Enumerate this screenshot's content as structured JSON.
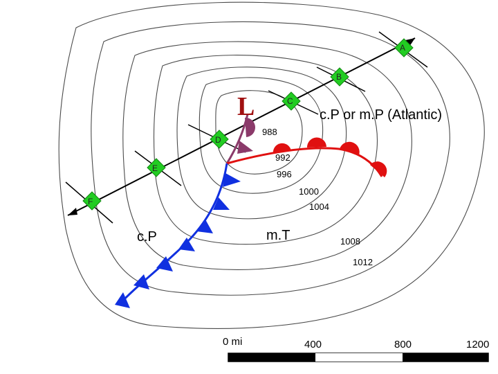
{
  "low_center": {
    "symbol": "L",
    "color": "#a01010"
  },
  "isobars": [
    {
      "label": "988"
    },
    {
      "label": "992"
    },
    {
      "label": "996"
    },
    {
      "label": "1000"
    },
    {
      "label": "1004"
    },
    {
      "label": "1008"
    },
    {
      "label": "1012"
    }
  ],
  "air_masses": {
    "atlantic": "c.P or m.P (Atlantic)",
    "cold_side": "c.P",
    "warm_side": "m.T"
  },
  "stations": [
    {
      "label": "A"
    },
    {
      "label": "B"
    },
    {
      "label": "C"
    },
    {
      "label": "D"
    },
    {
      "label": "E"
    },
    {
      "label": "F"
    }
  ],
  "fronts": {
    "warm_color": "#e01010",
    "cold_color": "#1030e0",
    "occluded_color": "#8b3a6a"
  },
  "station_color": "#22cc22",
  "scale_bar": {
    "ticks": [
      "0 mi",
      "400",
      "800",
      "1200"
    ]
  }
}
